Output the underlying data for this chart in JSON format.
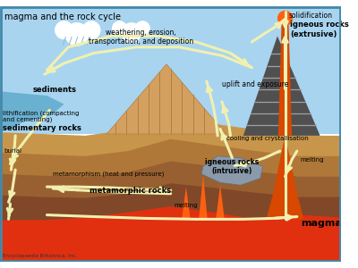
{
  "title": "magma and the rock cycle",
  "bg_sky": "#a8d4f0",
  "arrow_color": "#f0f0b0",
  "text_labels": {
    "title": "magma and the rock cycle",
    "solidification": "solidification",
    "igneous_extrusive": "igneous rocks\n(extrusive)",
    "weathering": "weathering, erosion,\ntransportation, and deposition",
    "uplift": "uplift and exposure",
    "sediments": "sediments",
    "lithification": "lithification (compacting\nand cementing)",
    "sedimentary": "sedimentary rocks",
    "metamorphism": "metamorphism (heat and pressure)",
    "metamorphic": "metamorphic rocks",
    "burial": "burial",
    "igneous_intrusive": "igneous rocks\n(intrusive)",
    "cooling": "cooling and crystallisation",
    "melting1": "melting",
    "melting2": "melting",
    "magma": "magma",
    "credit": "Encyclopaedia Britannica, Inc."
  },
  "colors": {
    "mountain_brown": "#c8964a",
    "mountain_stripe": "#a0a0a0",
    "mountain_dark": "#505050",
    "lava_orange": "#d84800",
    "lava_bright": "#ff6010",
    "ground_layers": [
      "#c8964a",
      "#b07838",
      "#986030",
      "#804828",
      "#703820"
    ],
    "magma_region": "#e03010",
    "cloud_white": "#ffffff",
    "intrusive_gray": "#8a9aaa",
    "water_blue": "#6ab0d0",
    "border": "#4488aa"
  }
}
